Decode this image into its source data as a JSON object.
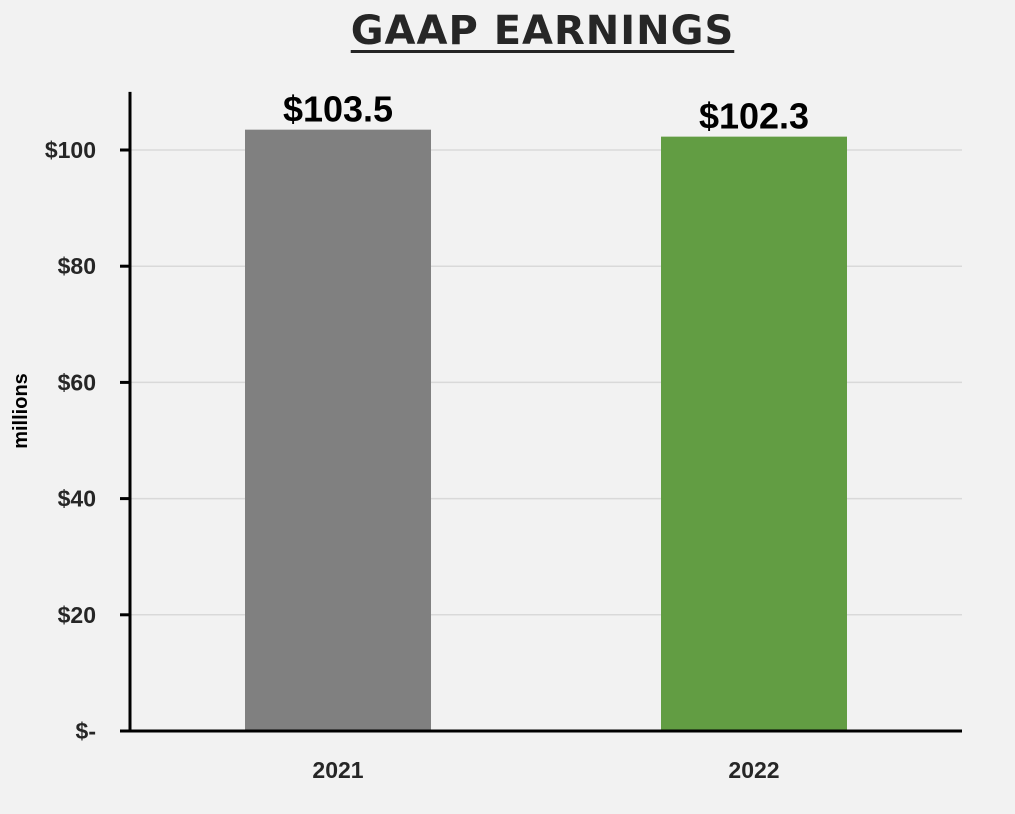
{
  "chart_data": {
    "type": "bar",
    "title": "GAAP EARNINGS",
    "ylabel": "millions",
    "xlabel": "",
    "categories": [
      "2021",
      "2022"
    ],
    "values": [
      103.5,
      102.3
    ],
    "data_labels": [
      "$103.5",
      "$102.3"
    ],
    "bar_colors": [
      "#808080",
      "#629d43"
    ],
    "ylim": [
      0,
      110
    ],
    "yticks": [
      0,
      20,
      40,
      60,
      80,
      100
    ],
    "ytick_labels": [
      "$-",
      "$20",
      "$40",
      "$60",
      "$80",
      "$100"
    ],
    "grid": true,
    "legend": "none"
  }
}
